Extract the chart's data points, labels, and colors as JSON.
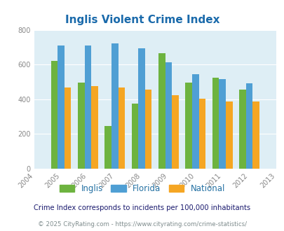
{
  "title": "Inglis Violent Crime Index",
  "years": [
    2004,
    2005,
    2006,
    2007,
    2008,
    2009,
    2010,
    2011,
    2012,
    2013
  ],
  "data_years": [
    2005,
    2006,
    2007,
    2008,
    2009,
    2010,
    2011,
    2012
  ],
  "inglis": [
    620,
    495,
    245,
    375,
    665,
    495,
    525,
    458
  ],
  "florida": [
    710,
    710,
    723,
    695,
    613,
    545,
    515,
    493
  ],
  "national": [
    470,
    478,
    470,
    455,
    425,
    403,
    387,
    387
  ],
  "inglis_color": "#6db33f",
  "florida_color": "#4f9fd4",
  "national_color": "#f5a623",
  "bg_color": "#deeef5",
  "ylim": [
    0,
    800
  ],
  "yticks": [
    0,
    200,
    400,
    600,
    800
  ],
  "footnote1": "Crime Index corresponds to incidents per 100,000 inhabitants",
  "footnote2": "© 2025 CityRating.com - https://www.cityrating.com/crime-statistics/",
  "legend_labels": [
    "Inglis",
    "Florida",
    "National"
  ],
  "title_color": "#1a6aab",
  "footnote1_color": "#1a1a6e",
  "footnote2_color": "#7f8c8d",
  "bar_width": 0.25
}
